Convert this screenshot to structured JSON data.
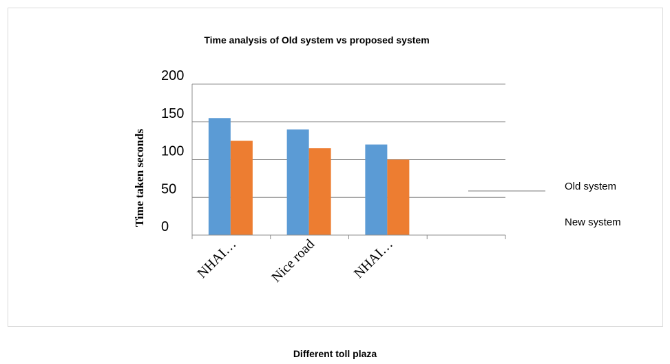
{
  "chart_data": {
    "type": "bar",
    "title": "Time analysis of Old system vs proposed system",
    "xlabel": "Different toll plaza",
    "ylabel": "Time taken seconds",
    "categories": [
      "NHAI…",
      "Nice road",
      "NHAI…",
      ""
    ],
    "series": [
      {
        "name": "Old system",
        "values": [
          155,
          140,
          120,
          null
        ],
        "color": "#5B9BD5"
      },
      {
        "name": "New system",
        "values": [
          125,
          115,
          100,
          null
        ],
        "color": "#ED7D31"
      }
    ],
    "y_ticks": [
      "0",
      "50",
      "100",
      "150",
      "200"
    ],
    "ylim": [
      0,
      200
    ],
    "grid": true,
    "legend_position": "right"
  }
}
